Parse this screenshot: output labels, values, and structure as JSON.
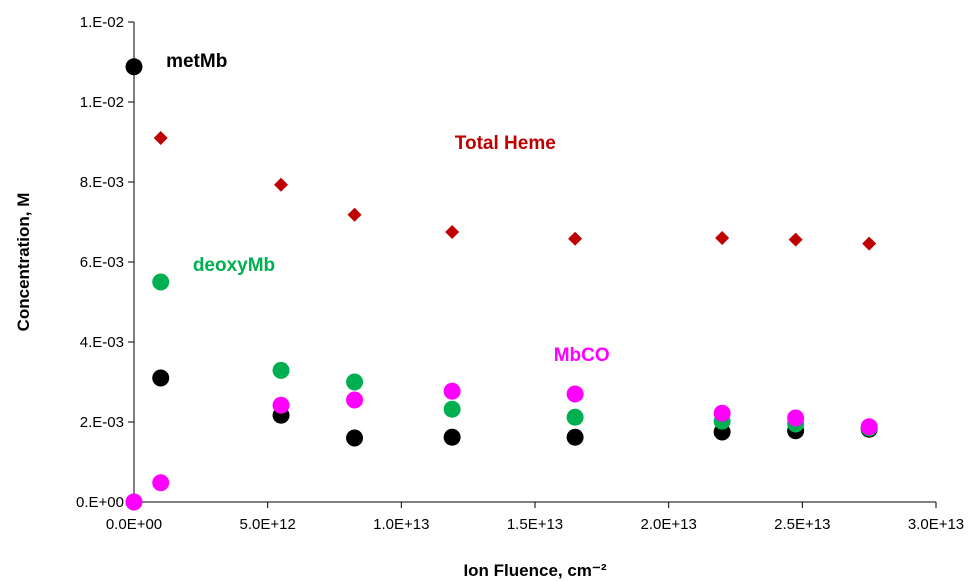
{
  "chart_data": {
    "type": "scatter",
    "title": "",
    "xlabel": "Ion Fluence, cm⁻²",
    "ylabel": "Concentration, M",
    "xlim": [
      0,
      30000000000000.0
    ],
    "ylim": [
      0,
      0.012
    ],
    "x_ticks": [
      0,
      5000000000000.0,
      10000000000000.0,
      15000000000000.0,
      20000000000000.0,
      25000000000000.0,
      30000000000000.0
    ],
    "x_tick_labels": [
      "0.0E+00",
      "5.0E+12",
      "1.0E+13",
      "1.5E+13",
      "2.0E+13",
      "2.5E+13",
      "3.0E+13"
    ],
    "y_ticks": [
      0,
      0.002,
      0.004,
      0.006,
      0.008,
      0.01,
      0.012
    ],
    "y_tick_labels": [
      "0.E+00",
      "2.E-03",
      "4.E-03",
      "6.E-03",
      "8.E-03",
      "1.E-02",
      "1.E-02"
    ],
    "grid": false,
    "legend": "none (series labeled inline)",
    "series": [
      {
        "name": "Total Heme",
        "color": "#c00000",
        "marker": "diamond",
        "points": [
          [
            1000000000000.0,
            0.0091
          ],
          [
            5500000000000.0,
            0.00793
          ],
          [
            8250000000000.0,
            0.00718
          ],
          [
            11900000000000.0,
            0.00675
          ],
          [
            16500000000000.0,
            0.00658
          ],
          [
            22000000000000.0,
            0.0066
          ],
          [
            24750000000000.0,
            0.00656
          ],
          [
            27500000000000.0,
            0.00646
          ]
        ],
        "label_at": [
          12000000000000.0,
          0.009
        ]
      },
      {
        "name": "metMb",
        "color": "#000000",
        "marker": "circle",
        "points": [
          [
            0,
            0.01088
          ],
          [
            1000000000000.0,
            0.0031
          ],
          [
            5500000000000.0,
            0.00217
          ],
          [
            8250000000000.0,
            0.0016
          ],
          [
            11900000000000.0,
            0.00162
          ],
          [
            16500000000000.0,
            0.00162
          ],
          [
            22000000000000.0,
            0.00175
          ],
          [
            24750000000000.0,
            0.00178
          ],
          [
            27500000000000.0,
            0.00182
          ]
        ],
        "label_at": [
          1200000000000.0,
          0.01105
        ]
      },
      {
        "name": "deoxyMb",
        "color": "#00b050",
        "marker": "circle",
        "points": [
          [
            0,
            0
          ],
          [
            1000000000000.0,
            0.0055
          ],
          [
            5500000000000.0,
            0.00329
          ],
          [
            8250000000000.0,
            0.003
          ],
          [
            11900000000000.0,
            0.00232
          ],
          [
            16500000000000.0,
            0.00212
          ],
          [
            22000000000000.0,
            0.00202
          ],
          [
            24750000000000.0,
            0.00195
          ],
          [
            27500000000000.0,
            0.00185
          ]
        ],
        "label_at": [
          2200000000000.0,
          0.00595
        ]
      },
      {
        "name": "MbCO",
        "color": "#ff00ff",
        "marker": "circle",
        "points": [
          [
            0,
            0
          ],
          [
            1000000000000.0,
            0.00048
          ],
          [
            5500000000000.0,
            0.00242
          ],
          [
            8250000000000.0,
            0.00255
          ],
          [
            11900000000000.0,
            0.00277
          ],
          [
            16500000000000.0,
            0.0027
          ],
          [
            22000000000000.0,
            0.00222
          ],
          [
            24750000000000.0,
            0.0021
          ],
          [
            27500000000000.0,
            0.00188
          ]
        ],
        "label_at": [
          15700000000000.0,
          0.0037
        ]
      }
    ]
  }
}
